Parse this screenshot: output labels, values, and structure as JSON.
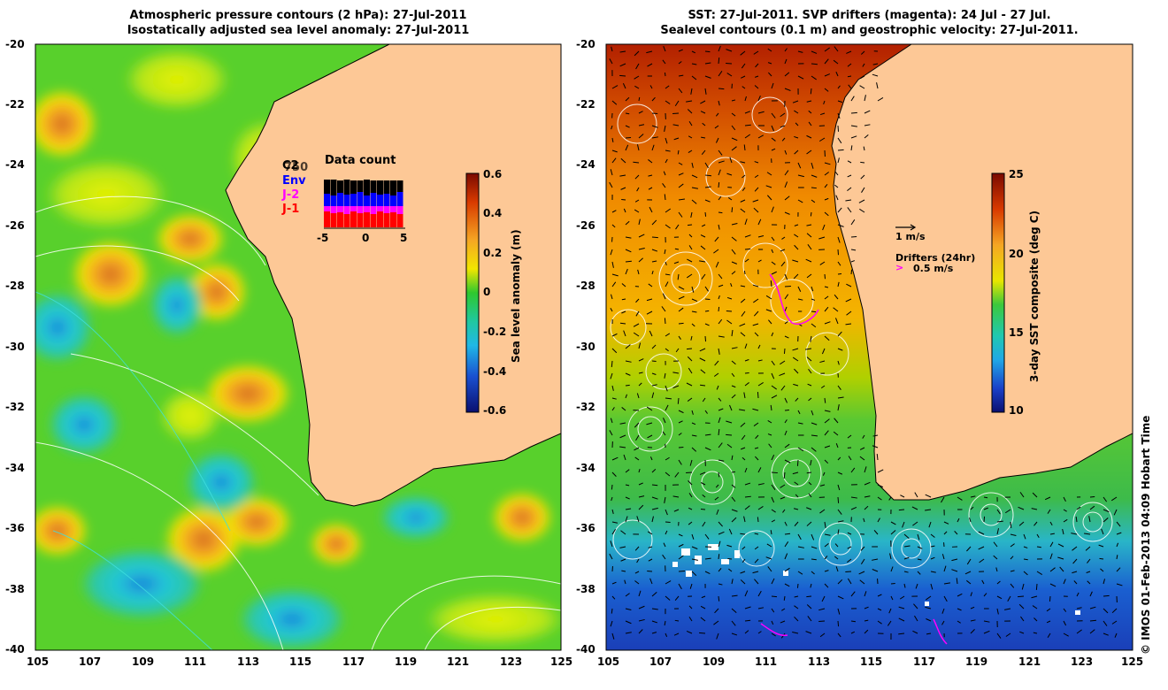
{
  "left_panel": {
    "title_line1": "Atmospheric pressure contours (2 hPa): 27-Jul-2011",
    "title_line2": "Isostatically adjusted sea level anomaly: 27-Jul-2011",
    "colorbar_label": "Sea level anomaly (m)",
    "colorbar_ticks": [
      "0.6",
      "0.4",
      "0.2",
      "0",
      "-0.2",
      "-0.4",
      "-0.6"
    ],
    "colorbar_range": [
      -0.6,
      0.6
    ],
    "inset": {
      "title": "Data count",
      "satellites": [
        {
          "label": "C2",
          "color": "#000000"
        },
        {
          "label": "Env",
          "color": "#0000ff"
        },
        {
          "label": "J-2",
          "color": "#ff00ff"
        },
        {
          "label": "J-1",
          "color": "#ff0000"
        }
      ],
      "overlap_label": "750",
      "x_ticks": [
        "-5",
        "0",
        "5"
      ],
      "x_range": [
        -5,
        5
      ]
    }
  },
  "right_panel": {
    "title_line1": "SST: 27-Jul-2011. SVP drifters (magenta): 24 Jul - 27 Jul.",
    "title_line2": "Sealevel contours (0.1 m) and geostrophic velocity: 27-Jul-2011.",
    "colorbar_label": "3-day SST composite (deg C)",
    "colorbar_ticks": [
      "25",
      "20",
      "15",
      "10"
    ],
    "colorbar_range": [
      10,
      25
    ],
    "velocity_scale_label": "1 m/s",
    "drifters_label": "Drifters (24hr)",
    "drifter_scale_label": "0.5 m/s",
    "drifter_symbol": ">"
  },
  "axes": {
    "lon_ticks": [
      "105",
      "107",
      "109",
      "111",
      "113",
      "115",
      "117",
      "119",
      "121",
      "123",
      "125"
    ],
    "lat_ticks": [
      "-20",
      "-22",
      "-24",
      "-26",
      "-28",
      "-30",
      "-32",
      "-34",
      "-36",
      "-38",
      "-40"
    ],
    "lon_range": [
      105,
      125
    ],
    "lat_range": [
      -40,
      -20
    ]
  },
  "credit": "© IMOS 01-Feb-2013 04:09 Hobart Time",
  "colors": {
    "land": "#fdc896",
    "magenta": "#ff00ff"
  },
  "icons": {
    "coastline": "coastline-path",
    "velocity_arrow": "arrow-icon",
    "drifter_marker": "chevron-right-icon"
  }
}
